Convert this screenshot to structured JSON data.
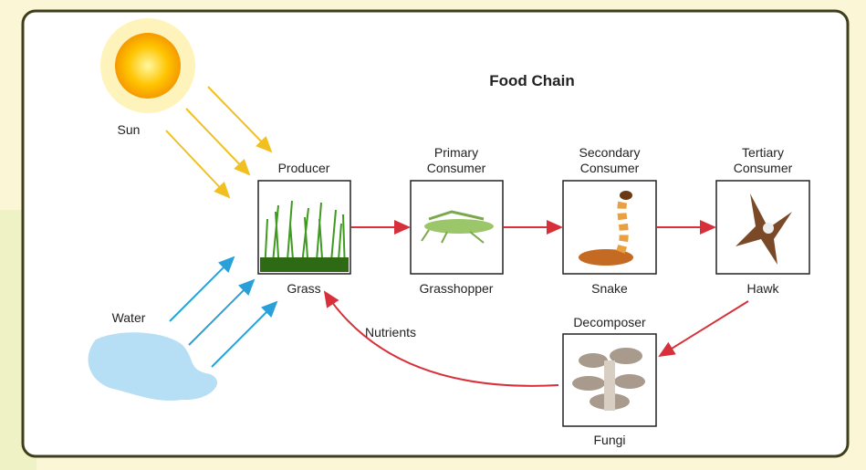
{
  "title": "Food Chain",
  "sources": {
    "sun": "Sun",
    "water": "Water"
  },
  "levels": [
    {
      "role": [
        "Producer"
      ],
      "organism": "Grass"
    },
    {
      "role": [
        "Primary",
        "Consumer"
      ],
      "organism": "Grasshopper"
    },
    {
      "role": [
        "Secondary",
        "Consumer"
      ],
      "organism": "Snake"
    },
    {
      "role": [
        "Tertiary",
        "Consumer"
      ],
      "organism": "Hawk"
    }
  ],
  "decomposer": {
    "role": "Decomposer",
    "organism": "Fungi"
  },
  "cycle_label": "Nutrients"
}
